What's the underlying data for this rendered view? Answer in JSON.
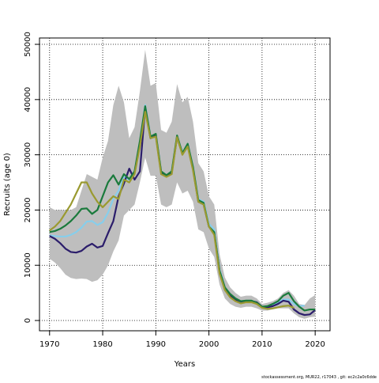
{
  "chart_data": {
    "type": "line",
    "xlabel": "Years",
    "ylabel": "Recruits (age 0)",
    "footnote": "stockassessment.org, MUR22, r17043 , git: ec2c2a0c6dde",
    "x": [
      1970,
      1971,
      1972,
      1973,
      1974,
      1975,
      1976,
      1977,
      1978,
      1979,
      1980,
      1981,
      1982,
      1983,
      1984,
      1985,
      1986,
      1987,
      1988,
      1989,
      1990,
      1991,
      1992,
      1993,
      1994,
      1995,
      1996,
      1997,
      1998,
      1999,
      2000,
      2001,
      2002,
      2003,
      2004,
      2005,
      2006,
      2007,
      2008,
      2009,
      2010,
      2011,
      2012,
      2013,
      2014,
      2015,
      2016,
      2017,
      2018,
      2019,
      2020
    ],
    "band": {
      "color": "#bebebe",
      "upper": [
        20500,
        20000,
        20000,
        20000,
        20000,
        20500,
        23500,
        26500,
        26000,
        25500,
        29500,
        32500,
        39000,
        42500,
        39500,
        33000,
        35000,
        41500,
        49000,
        42500,
        43000,
        34500,
        34000,
        36000,
        42800,
        39500,
        40500,
        36000,
        28500,
        27000,
        22500,
        21000,
        12000,
        7800,
        6000,
        5000,
        4300,
        4500,
        4500,
        4000,
        3000,
        3200,
        3500,
        4000,
        5000,
        5500,
        4500,
        3000,
        2800,
        4000,
        4600
      ],
      "lower": [
        11200,
        10500,
        9500,
        8300,
        7700,
        7500,
        7600,
        7500,
        7000,
        7300,
        8300,
        10000,
        12500,
        14500,
        19000,
        20000,
        21000,
        25000,
        29500,
        26200,
        26200,
        21000,
        20500,
        21000,
        25000,
        23000,
        23500,
        21500,
        16500,
        16000,
        13000,
        11500,
        6500,
        4000,
        3000,
        2500,
        2300,
        2500,
        2500,
        2200,
        1800,
        1800,
        2000,
        2200,
        2200,
        2200,
        1300,
        600,
        300,
        600,
        700
      ]
    },
    "series": [
      {
        "color": "#87ceeb",
        "values": [
          15400,
          15300,
          15200,
          15200,
          15500,
          16000,
          16800,
          17900,
          18000,
          17300,
          17800,
          19500,
          22000,
          23500,
          26000,
          25500,
          26800,
          32000,
          39000,
          33300,
          33700,
          27000,
          26300,
          27000,
          33400,
          30400,
          32000,
          27800,
          22000,
          21500,
          17500,
          16500,
          9300,
          6000,
          4700,
          3900,
          3500,
          3500,
          3500,
          3200,
          2500,
          2500,
          2800,
          3300,
          3800,
          3800,
          3000,
          2600,
          2700,
          null,
          null
        ]
      },
      {
        "color": "#2b1d6b",
        "values": [
          15300,
          14800,
          14000,
          13000,
          12400,
          12300,
          12600,
          13400,
          13900,
          13200,
          13500,
          15800,
          18000,
          22500,
          24800,
          27500,
          25500,
          27000,
          38500,
          33000,
          33500,
          26800,
          26200,
          26800,
          33200,
          30200,
          31800,
          27500,
          21500,
          21000,
          17000,
          15800,
          9000,
          5800,
          4500,
          3800,
          3400,
          3500,
          3500,
          3300,
          2500,
          2400,
          2600,
          3000,
          3600,
          3400,
          2000,
          1300,
          1000,
          1100,
          1900
        ]
      },
      {
        "color": "#1a7a3c",
        "values": [
          16000,
          16200,
          16600,
          17200,
          18000,
          19000,
          20200,
          20300,
          19300,
          20000,
          22500,
          25000,
          26300,
          24600,
          26500,
          25600,
          27000,
          32500,
          38800,
          33300,
          33800,
          27000,
          26300,
          27000,
          33500,
          30300,
          32000,
          27800,
          21800,
          21300,
          17000,
          16000,
          9000,
          6000,
          4800,
          4000,
          3500,
          3600,
          3600,
          3200,
          2500,
          2600,
          3000,
          3500,
          4500,
          5000,
          3500,
          2500,
          1800,
          2000,
          2000
        ]
      },
      {
        "color": "#9a9a30",
        "values": [
          16300,
          17000,
          18000,
          19500,
          21000,
          23000,
          25000,
          25000,
          23000,
          21500,
          20500,
          21500,
          22500,
          22000,
          25500,
          25000,
          26500,
          31500,
          37800,
          33000,
          33300,
          26500,
          26000,
          26500,
          33200,
          30000,
          31500,
          27200,
          21500,
          21000,
          17000,
          15500,
          8500,
          5500,
          4200,
          3500,
          3100,
          3300,
          3300,
          3000,
          2300,
          2100,
          2200,
          2400,
          2600,
          2700,
          2300,
          null,
          null,
          null,
          null
        ]
      }
    ],
    "xlim": [
      1968.1,
      2022.8
    ],
    "xticks": [
      1970,
      1980,
      1990,
      2000,
      2010,
      2020
    ],
    "ylim": [
      -1860,
      51150
    ],
    "yticks": [
      0,
      10000,
      20000,
      30000,
      40000,
      50000
    ],
    "grid": true
  }
}
